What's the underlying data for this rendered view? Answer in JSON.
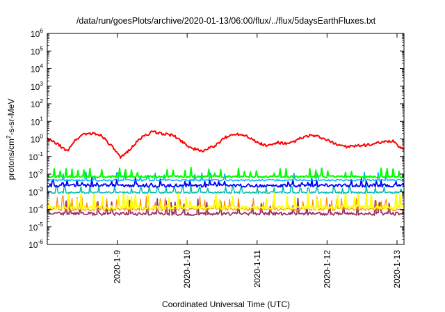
{
  "chart_data": {
    "type": "line",
    "title": "/data/run/goesPlots/archive/2020-01-13/06:00/flux/../flux/5daysEarthFluxes.txt",
    "xlabel": "Coordinated Universal Time (UTC)",
    "ylabel": {
      "prefix": "protons/cm",
      "sup": "2",
      "suffix": "-s-sr-MeV"
    },
    "yscale": "log",
    "ylim_exponent": [
      -6,
      6
    ],
    "y_ticks": [
      {
        "base": "10",
        "exp": "-6"
      },
      {
        "base": "10",
        "exp": "-5"
      },
      {
        "base": "10",
        "exp": "-4"
      },
      {
        "base": "10",
        "exp": "-3"
      },
      {
        "base": "10",
        "exp": "-2"
      },
      {
        "base": "10",
        "exp": "-1"
      },
      {
        "base": "10",
        "exp": "0"
      },
      {
        "base": "10",
        "exp": "1"
      },
      {
        "base": "10",
        "exp": "2"
      },
      {
        "base": "10",
        "exp": "3"
      },
      {
        "base": "10",
        "exp": "4"
      },
      {
        "base": "10",
        "exp": "5"
      },
      {
        "base": "10",
        "exp": "6"
      }
    ],
    "xlim_days": [
      0,
      5.1
    ],
    "x_ticks": [
      {
        "label": "2020-1-9",
        "day": 1.0
      },
      {
        "label": "2020-1-10",
        "day": 2.0
      },
      {
        "label": "2020-1-11",
        "day": 3.0
      },
      {
        "label": "2020-1-12",
        "day": 4.0
      },
      {
        "label": "2020-1-13",
        "day": 5.0
      }
    ],
    "grid": false,
    "series": [
      {
        "color": "#ff0000",
        "width": 2.0,
        "style": "smooth",
        "start": 5,
        "mid": -0.4,
        "anchors": [
          [
            0.0,
            0.0
          ],
          [
            0.15,
            -0.3
          ],
          [
            0.28,
            -0.7
          ],
          [
            0.38,
            -0.15
          ],
          [
            0.52,
            0.3
          ],
          [
            0.66,
            0.3
          ],
          [
            0.78,
            0.2
          ],
          [
            0.95,
            -0.55
          ],
          [
            1.05,
            -1.1
          ],
          [
            1.2,
            -0.5
          ],
          [
            1.35,
            0.1
          ],
          [
            1.5,
            0.4
          ],
          [
            1.65,
            0.3
          ],
          [
            1.8,
            0.2
          ],
          [
            1.95,
            -0.2
          ],
          [
            2.05,
            -0.5
          ],
          [
            2.2,
            -0.7
          ],
          [
            2.4,
            -0.4
          ],
          [
            2.55,
            0.1
          ],
          [
            2.7,
            0.3
          ],
          [
            2.85,
            0.2
          ],
          [
            3.0,
            -0.2
          ],
          [
            3.15,
            -0.4
          ],
          [
            3.3,
            -0.2
          ],
          [
            3.45,
            -0.3
          ],
          [
            3.6,
            0.0
          ],
          [
            3.75,
            0.2
          ],
          [
            3.9,
            0.1
          ],
          [
            4.1,
            -0.25
          ],
          [
            4.3,
            -0.45
          ],
          [
            4.55,
            -0.35
          ],
          [
            4.8,
            -0.2
          ],
          [
            4.95,
            -0.1
          ],
          [
            5.05,
            -0.5
          ],
          [
            5.1,
            -0.55
          ]
        ],
        "noise": 0.08
      },
      {
        "color": "#00ff00",
        "width": 2.0,
        "style": "spiky",
        "start": 7,
        "base": -2.15,
        "noise": 0.06,
        "period": 0.085,
        "amp": 0.5,
        "spikeProb": 0.45
      },
      {
        "color": "#00aaff",
        "width": 1.5,
        "style": "spiky",
        "start": 4,
        "base": -2.35,
        "noise": 0.05,
        "period": 0.11,
        "amp": 0.5,
        "spikeProb": 0.3
      },
      {
        "color": "#0000ff",
        "width": 1.8,
        "style": "spiky",
        "start": 1,
        "base": -2.65,
        "noise": 0.09,
        "period": 0.07,
        "amp": 0.35,
        "spikeProb": 0.35
      },
      {
        "color": "#00bbaa",
        "width": 1.5,
        "style": "spiky",
        "start": 3,
        "base": -3.05,
        "noise": 0.05,
        "period": 0.12,
        "amp": 0.4,
        "spikeProb": 0.4
      },
      {
        "color": "#ffff00",
        "width": 2.0,
        "style": "spiky",
        "start": 9,
        "base": -3.9,
        "noise": 0.1,
        "period": 0.06,
        "amp": 0.85,
        "spikeProb": 0.45
      },
      {
        "color": "#ff8800",
        "width": 1.2,
        "style": "spiky",
        "start": 11,
        "base": -4.0,
        "noise": 0.08,
        "period": 0.07,
        "amp": 0.75,
        "spikeProb": 0.4
      },
      {
        "color": "#993366",
        "width": 1.8,
        "style": "spiky",
        "start": 13,
        "base": -4.25,
        "noise": 0.09,
        "period": 0.065,
        "amp": 0.85,
        "spikeProb": 0.45
      }
    ]
  }
}
